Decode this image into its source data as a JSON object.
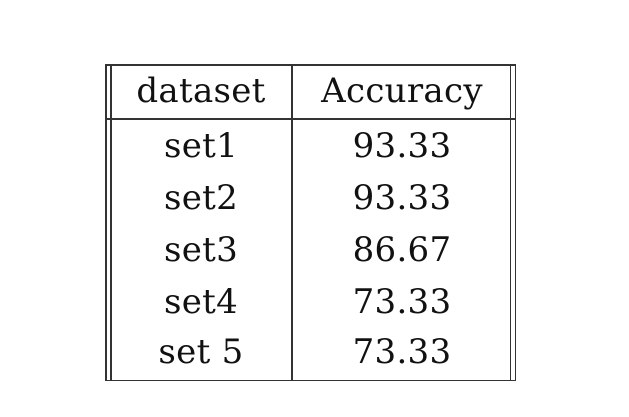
{
  "table": {
    "headers": [
      "dataset",
      "Accuracy"
    ],
    "rows": [
      [
        "set1",
        "93.33"
      ],
      [
        "set2",
        "93.33"
      ],
      [
        "set3",
        "86.67"
      ],
      [
        "set4",
        "73.33"
      ],
      [
        "set 5",
        "73.33"
      ]
    ]
  }
}
